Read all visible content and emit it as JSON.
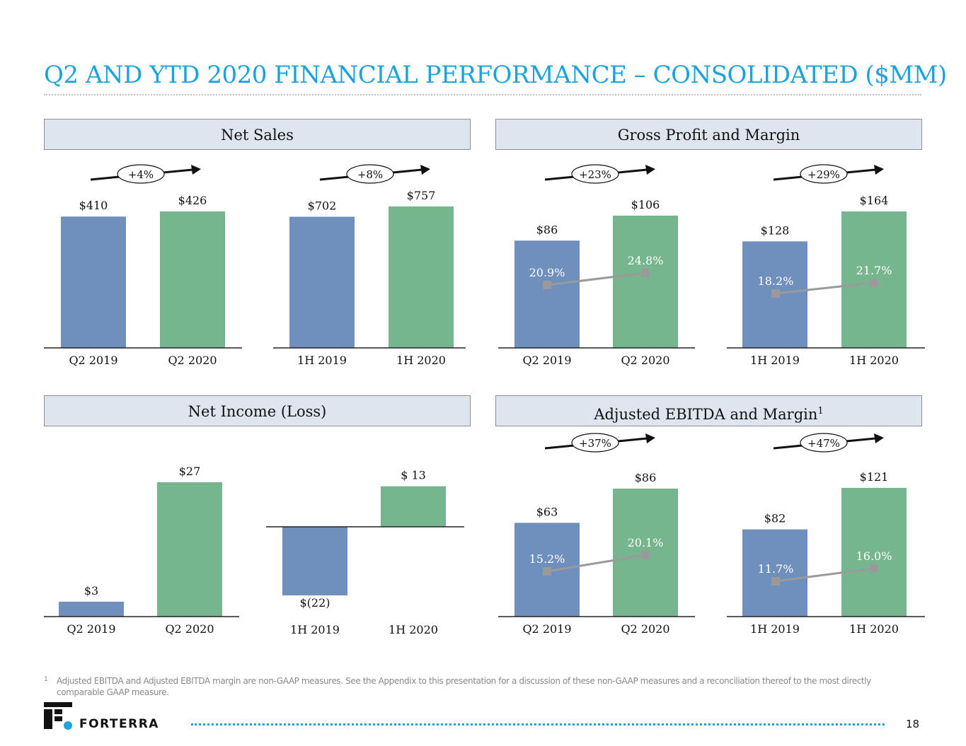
{
  "title": "Q2 AND YTD 2020 FINANCIAL PERFORMANCE – CONSOLIDATED ($MM)",
  "panels": {
    "net_sales": "Net Sales",
    "gross_profit": "Gross Profit and Margin",
    "net_income": "Net Income (Loss)",
    "adj_ebitda": "Adjusted EBITDA and Margin",
    "adj_ebitda_sup": "1"
  },
  "colors": {
    "blue": "#6f8fbc",
    "green": "#75b68f",
    "title": "#1aa3dc",
    "margin_line": "#9a9a9a"
  },
  "chart_data": [
    {
      "id": "net-sales-q2",
      "type": "bar",
      "categories": [
        "Q2 2019",
        "Q2 2020"
      ],
      "values": [
        410,
        426
      ],
      "labels": [
        "$410",
        "$426"
      ],
      "growth": "+4%"
    },
    {
      "id": "net-sales-1h",
      "type": "bar",
      "categories": [
        "1H 2019",
        "1H 2020"
      ],
      "values": [
        702,
        757
      ],
      "labels": [
        "$702",
        "$757"
      ],
      "growth": "+8%"
    },
    {
      "id": "gross-profit-q2",
      "type": "bar",
      "categories": [
        "Q2 2019",
        "Q2 2020"
      ],
      "values": [
        86,
        106
      ],
      "labels": [
        "$86",
        "$106"
      ],
      "margins": [
        20.9,
        24.8
      ],
      "margin_labels": [
        "20.9%",
        "24.8%"
      ],
      "growth": "+23%"
    },
    {
      "id": "gross-profit-1h",
      "type": "bar",
      "categories": [
        "1H 2019",
        "1H 2020"
      ],
      "values": [
        128,
        164
      ],
      "labels": [
        "$128",
        "$164"
      ],
      "margins": [
        18.2,
        21.7
      ],
      "margin_labels": [
        "18.2%",
        "21.7%"
      ],
      "growth": "+29%"
    },
    {
      "id": "net-income-q2",
      "type": "bar",
      "categories": [
        "Q2 2019",
        "Q2 2020"
      ],
      "values": [
        3,
        27
      ],
      "labels": [
        "$3",
        "$27"
      ]
    },
    {
      "id": "net-income-1h",
      "type": "bar",
      "categories": [
        "1H 2019",
        "1H 2020"
      ],
      "values": [
        -22,
        13
      ],
      "labels": [
        "$(22)",
        "$ 13"
      ]
    },
    {
      "id": "adj-ebitda-q2",
      "type": "bar",
      "categories": [
        "Q2 2019",
        "Q2 2020"
      ],
      "values": [
        63,
        86
      ],
      "labels": [
        "$63",
        "$86"
      ],
      "margins": [
        15.2,
        20.1
      ],
      "margin_labels": [
        "15.2%",
        "20.1%"
      ],
      "growth": "+37%"
    },
    {
      "id": "adj-ebitda-1h",
      "type": "bar",
      "categories": [
        "1H 2019",
        "1H 2020"
      ],
      "values": [
        82,
        121
      ],
      "labels": [
        "$82",
        "$121"
      ],
      "margins": [
        11.7,
        16.0
      ],
      "margin_labels": [
        "11.7%",
        "16.0%"
      ],
      "growth": "+47%"
    }
  ],
  "footnote": {
    "mark": "1",
    "text": "Adjusted EBITDA and Adjusted EBITDA margin are non-GAAP measures.  See the Appendix to this presentation for a discussion of these non-GAAP measures and a reconciliation thereof to the most directly comparable GAAP measure."
  },
  "logo_text": "FORTERRA",
  "page_number": "18"
}
